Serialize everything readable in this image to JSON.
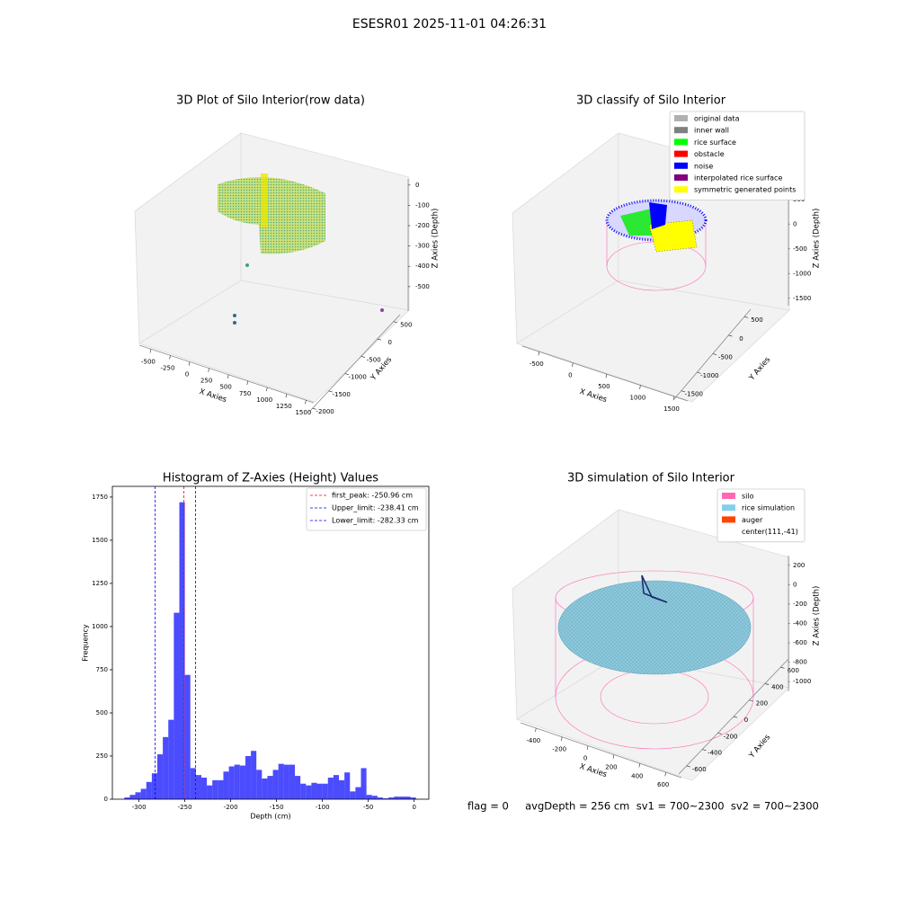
{
  "title": "ESESR01 2025-11-01 04:26:31",
  "footer": "flag = 0     avgDepth = 256 cm  sv1 = 700~2300  sv2 = 700~2300",
  "chart_data": [
    {
      "type": "scatter3d",
      "title": "3D Plot of Silo Interior(row data)",
      "x_label": "X Axies",
      "y_label": "Y Axies",
      "z_label": "Z Axies (Depth)",
      "xlim": [
        -650,
        1600
      ],
      "xticks": [
        -500,
        -250,
        0,
        250,
        500,
        750,
        1000,
        1250,
        1500
      ],
      "ylim": [
        -2100,
        700
      ],
      "yticks": [
        -2000,
        -1500,
        -1000,
        -500,
        0,
        500
      ],
      "zlim": [
        -620,
        30
      ],
      "zticks": [
        -500,
        -400,
        -300,
        -200,
        -100,
        0
      ]
    },
    {
      "type": "scatter3d",
      "title": "3D classify of Silo Interior",
      "x_label": "X Axies",
      "y_label": "Y Axies",
      "z_label": "Z Axies (Depth)",
      "xlim": [
        -750,
        1700
      ],
      "xticks": [
        -500,
        0,
        500,
        1000,
        1500
      ],
      "ylim": [
        -1750,
        700
      ],
      "yticks": [
        -1500,
        -1000,
        -500,
        0,
        500
      ],
      "zlim": [
        -1650,
        550
      ],
      "zticks": [
        -1500,
        -1000,
        -500,
        0,
        500
      ],
      "legend_loc": "upper right",
      "legend": [
        {
          "name": "original data",
          "color": "#b0b0b0"
        },
        {
          "name": "inner wall",
          "color": "#808080"
        },
        {
          "name": "rice surface",
          "color": "#00ff00"
        },
        {
          "name": "obstacle",
          "color": "#ff0000"
        },
        {
          "name": "noise",
          "color": "#0000ff"
        },
        {
          "name": "interpolated rice surface",
          "color": "#800080"
        },
        {
          "name": "symmetric generated points",
          "color": "#ffff00"
        }
      ]
    },
    {
      "type": "histogram",
      "title": "Histogram of Z-Axies (Height) Values",
      "x_label": "Depth (cm)",
      "y_label": "Frequency",
      "color": "#0000ff",
      "bins": [
        -316,
        -310,
        -304,
        -298,
        -292,
        -286,
        -280,
        -274,
        -268,
        -262,
        -256,
        -250,
        -244,
        -238,
        -232,
        -226,
        -220,
        -214,
        -208,
        -202,
        -196,
        -190,
        -184,
        -178,
        -172,
        -166,
        -160,
        -154,
        -148,
        -142,
        -136,
        -130,
        -124,
        -118,
        -112,
        -106,
        -100,
        -94,
        -88,
        -82,
        -76,
        -70,
        -64,
        -58,
        -52,
        -46,
        -40,
        -34,
        -28,
        -22,
        -16,
        -10,
        -4,
        2
      ],
      "values": [
        10,
        25,
        40,
        60,
        100,
        150,
        260,
        360,
        460,
        1080,
        1720,
        720,
        180,
        140,
        125,
        80,
        110,
        110,
        160,
        190,
        200,
        195,
        250,
        280,
        170,
        120,
        135,
        170,
        205,
        200,
        200,
        135,
        90,
        80,
        95,
        90,
        90,
        125,
        140,
        110,
        155,
        45,
        70,
        180,
        25,
        20,
        10,
        5,
        10,
        15,
        15,
        15,
        10
      ],
      "xlim": [
        -329,
        16
      ],
      "xticks": [
        -300,
        -250,
        -200,
        -150,
        -100,
        -50,
        0
      ],
      "ylim": [
        0,
        1812
      ],
      "yticks": [
        0,
        250,
        500,
        750,
        1000,
        1250,
        1500,
        1750
      ],
      "legend_loc": "upper right",
      "vlines": [
        {
          "name": "first_peak: -250.96 cm",
          "value": -250.96,
          "color": "#ff0000"
        },
        {
          "name": "Upper_limit: -238.41 cm",
          "value": -238.41,
          "color": "#0000ff"
        },
        {
          "name": "Lower_limit: -282.33 cm",
          "value": -282.33,
          "color": "#0000ff"
        }
      ]
    },
    {
      "type": "surface3d",
      "title": "3D simulation of Silo Interior",
      "x_label": "X Axies",
      "y_label": "Y Axies",
      "z_label": "Z Axies (Depth)",
      "xlim": [
        -520,
        720
      ],
      "xticks": [
        -400,
        -200,
        0,
        200,
        400,
        600
      ],
      "ylim": [
        -700,
        700
      ],
      "yticks": [
        -600,
        -400,
        -200,
        0,
        200,
        400,
        600
      ],
      "zlim": [
        -1100,
        300
      ],
      "zticks": [
        -1000,
        -800,
        -600,
        -400,
        -200,
        0,
        200
      ],
      "legend_loc": "upper right",
      "legend": [
        {
          "name": "silo",
          "color": "#ff69b4"
        },
        {
          "name": "rice simulation",
          "color": "#87ceeb"
        },
        {
          "name": "auger",
          "color": "#ff4500"
        },
        {
          "name": "center(111,-41)"
        }
      ]
    }
  ]
}
